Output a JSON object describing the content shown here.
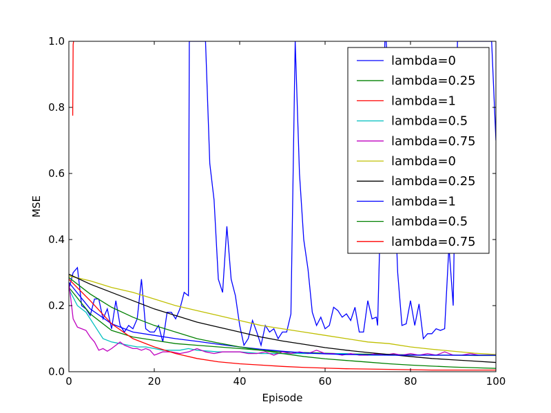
{
  "chart_data": {
    "type": "line",
    "xlabel": "Episode",
    "ylabel": "MSE",
    "xlim": [
      0,
      100
    ],
    "ylim": [
      0,
      1.0
    ],
    "xticks": [
      0,
      20,
      40,
      60,
      80,
      100
    ],
    "yticks": [
      0.0,
      0.2,
      0.4,
      0.6,
      0.8,
      1.0
    ],
    "xtick_labels": [
      "0",
      "20",
      "40",
      "60",
      "80",
      "100"
    ],
    "ytick_labels": [
      "0.0",
      "0.2",
      "0.4",
      "0.6",
      "0.8",
      "1.0"
    ],
    "grid": false,
    "legend_position": "top-right",
    "series": [
      {
        "name": "lambda=0",
        "color": "#0000ff",
        "x": [
          0,
          1,
          2,
          3,
          4,
          5,
          6,
          7,
          8,
          9,
          10,
          11,
          12,
          13,
          14,
          15,
          16,
          17,
          18,
          19,
          20,
          21,
          22,
          23,
          24,
          25,
          26,
          27,
          28,
          28.2,
          32,
          33,
          34,
          35,
          36,
          37,
          38,
          39,
          40,
          41,
          42,
          43,
          44,
          45,
          46,
          47,
          48,
          49,
          50,
          51,
          52,
          53,
          54,
          55,
          56,
          57,
          58,
          59,
          60,
          61,
          62,
          63,
          64,
          65,
          66,
          67,
          68,
          69,
          70,
          71,
          72,
          72.3,
          74,
          74.3,
          75,
          76,
          77,
          78,
          79,
          80,
          81,
          82,
          83,
          84,
          85,
          86,
          87,
          88,
          89,
          90,
          91,
          99,
          100
        ],
        "y": [
          0.25,
          0.3,
          0.315,
          0.2,
          0.19,
          0.17,
          0.22,
          0.22,
          0.16,
          0.19,
          0.13,
          0.215,
          0.14,
          0.12,
          0.14,
          0.13,
          0.16,
          0.28,
          0.13,
          0.12,
          0.12,
          0.14,
          0.09,
          0.18,
          0.18,
          0.16,
          0.19,
          0.24,
          0.23,
          1.0,
          1.0,
          0.63,
          0.52,
          0.28,
          0.24,
          0.44,
          0.28,
          0.23,
          0.14,
          0.08,
          0.1,
          0.155,
          0.12,
          0.08,
          0.14,
          0.12,
          0.13,
          0.1,
          0.12,
          0.12,
          0.175,
          1.0,
          0.6,
          0.4,
          0.31,
          0.18,
          0.14,
          0.165,
          0.13,
          0.14,
          0.195,
          0.185,
          0.165,
          0.175,
          0.155,
          0.195,
          0.12,
          0.12,
          0.215,
          0.16,
          0.165,
          0.14,
          1.0,
          1.0,
          0.86,
          0.64,
          0.3,
          0.14,
          0.145,
          0.215,
          0.14,
          0.205,
          0.1,
          0.115,
          0.115,
          0.13,
          0.125,
          0.13,
          0.38,
          0.2,
          1.0,
          1.0,
          0.7
        ]
      },
      {
        "name": "lambda=0.25",
        "color": "#008000",
        "x": [
          0,
          5,
          10,
          15,
          20,
          25,
          30,
          35,
          40,
          45,
          50,
          55,
          60,
          65,
          70,
          75,
          80,
          85,
          90,
          95,
          100
        ],
        "y": [
          0.255,
          0.175,
          0.125,
          0.105,
          0.095,
          0.085,
          0.08,
          0.075,
          0.07,
          0.065,
          0.06,
          0.058,
          0.056,
          0.054,
          0.053,
          0.052,
          0.051,
          0.05,
          0.05,
          0.049,
          0.049
        ]
      },
      {
        "name": "lambda=1",
        "color": "#ff0000",
        "x": [
          0.9,
          1.0,
          1.1
        ],
        "y": [
          0.775,
          0.99,
          1.0
        ]
      },
      {
        "name": "lambda=0.5",
        "color": "#00bfbf",
        "x": [
          0,
          2,
          4,
          6,
          8,
          10,
          12,
          14,
          16,
          18,
          20,
          22,
          24,
          26,
          28,
          30,
          35,
          40,
          45,
          50,
          55,
          60,
          65,
          70,
          75,
          80,
          85,
          90,
          95,
          100
        ],
        "y": [
          0.25,
          0.2,
          0.18,
          0.14,
          0.1,
          0.09,
          0.085,
          0.08,
          0.075,
          0.075,
          0.07,
          0.065,
          0.065,
          0.065,
          0.07,
          0.065,
          0.06,
          0.06,
          0.055,
          0.055,
          0.055,
          0.055,
          0.055,
          0.05,
          0.05,
          0.05,
          0.05,
          0.05,
          0.05,
          0.05
        ]
      },
      {
        "name": "lambda=0.75",
        "color": "#bf00bf",
        "x": [
          0,
          1,
          2,
          3,
          4,
          5,
          6,
          7,
          8,
          9,
          10,
          11,
          12,
          13,
          14,
          15,
          16,
          17,
          18,
          19,
          20,
          21,
          22,
          24,
          26,
          28,
          30,
          32,
          34,
          36,
          38,
          40,
          42,
          44,
          46,
          48,
          50,
          52,
          54,
          56,
          58,
          60,
          62,
          64,
          66,
          68,
          70,
          72,
          74,
          76,
          78,
          80,
          82,
          84,
          86,
          88,
          90,
          92,
          94,
          96,
          98,
          100
        ],
        "y": [
          0.27,
          0.16,
          0.135,
          0.13,
          0.125,
          0.105,
          0.09,
          0.065,
          0.07,
          0.062,
          0.07,
          0.08,
          0.09,
          0.08,
          0.075,
          0.07,
          0.07,
          0.065,
          0.07,
          0.065,
          0.05,
          0.055,
          0.06,
          0.06,
          0.055,
          0.06,
          0.07,
          0.06,
          0.055,
          0.06,
          0.06,
          0.06,
          0.055,
          0.055,
          0.06,
          0.05,
          0.06,
          0.055,
          0.06,
          0.055,
          0.065,
          0.055,
          0.055,
          0.05,
          0.055,
          0.05,
          0.05,
          0.055,
          0.05,
          0.055,
          0.05,
          0.055,
          0.05,
          0.055,
          0.05,
          0.06,
          0.05,
          0.05,
          0.055,
          0.05,
          0.05,
          0.05
        ]
      },
      {
        "name": "lambda=0",
        "color": "#bfbf00",
        "x": [
          0,
          5,
          10,
          15,
          20,
          25,
          30,
          35,
          40,
          45,
          50,
          55,
          60,
          65,
          70,
          75,
          80,
          85,
          90,
          95,
          100
        ],
        "y": [
          0.29,
          0.275,
          0.255,
          0.24,
          0.22,
          0.2,
          0.185,
          0.17,
          0.155,
          0.14,
          0.13,
          0.12,
          0.11,
          0.1,
          0.09,
          0.085,
          0.075,
          0.068,
          0.062,
          0.056,
          0.052
        ]
      },
      {
        "name": "lambda=0.25",
        "color": "#000000",
        "x": [
          0,
          5,
          10,
          15,
          20,
          25,
          30,
          35,
          40,
          45,
          50,
          55,
          60,
          65,
          70,
          75,
          80,
          85,
          90,
          95,
          100
        ],
        "y": [
          0.295,
          0.265,
          0.24,
          0.215,
          0.19,
          0.17,
          0.15,
          0.135,
          0.12,
          0.105,
          0.093,
          0.083,
          0.073,
          0.065,
          0.058,
          0.052,
          0.046,
          0.04,
          0.036,
          0.032,
          0.028
        ]
      },
      {
        "name": "lambda=1",
        "color": "#0000ff",
        "x": [
          0,
          5,
          10,
          15,
          20,
          25,
          30,
          35,
          40,
          45,
          50,
          55,
          60,
          65,
          70,
          75,
          80,
          85,
          90,
          95,
          100
        ],
        "y": [
          0.27,
          0.19,
          0.145,
          0.12,
          0.11,
          0.1,
          0.092,
          0.083,
          0.075,
          0.068,
          0.062,
          0.057,
          0.054,
          0.052,
          0.051,
          0.05,
          0.05,
          0.05,
          0.05,
          0.05,
          0.05
        ]
      },
      {
        "name": "lambda=0.5",
        "color": "#008000",
        "x": [
          0,
          5,
          10,
          15,
          20,
          25,
          30,
          35,
          40,
          45,
          50,
          55,
          60,
          65,
          70,
          75,
          80,
          85,
          90,
          95,
          100
        ],
        "y": [
          0.285,
          0.235,
          0.195,
          0.165,
          0.14,
          0.12,
          0.1,
          0.087,
          0.075,
          0.065,
          0.055,
          0.046,
          0.039,
          0.034,
          0.029,
          0.024,
          0.02,
          0.017,
          0.014,
          0.012,
          0.01
        ]
      },
      {
        "name": "lambda=0.75",
        "color": "#ff0000",
        "x": [
          0,
          5,
          10,
          15,
          20,
          25,
          30,
          35,
          40,
          45,
          50,
          55,
          60,
          65,
          70,
          75,
          80,
          85,
          90,
          95,
          100
        ],
        "y": [
          0.28,
          0.215,
          0.145,
          0.1,
          0.075,
          0.055,
          0.04,
          0.03,
          0.024,
          0.02,
          0.016,
          0.013,
          0.011,
          0.009,
          0.008,
          0.007,
          0.006,
          0.005,
          0.005,
          0.005,
          0.005
        ]
      }
    ]
  }
}
